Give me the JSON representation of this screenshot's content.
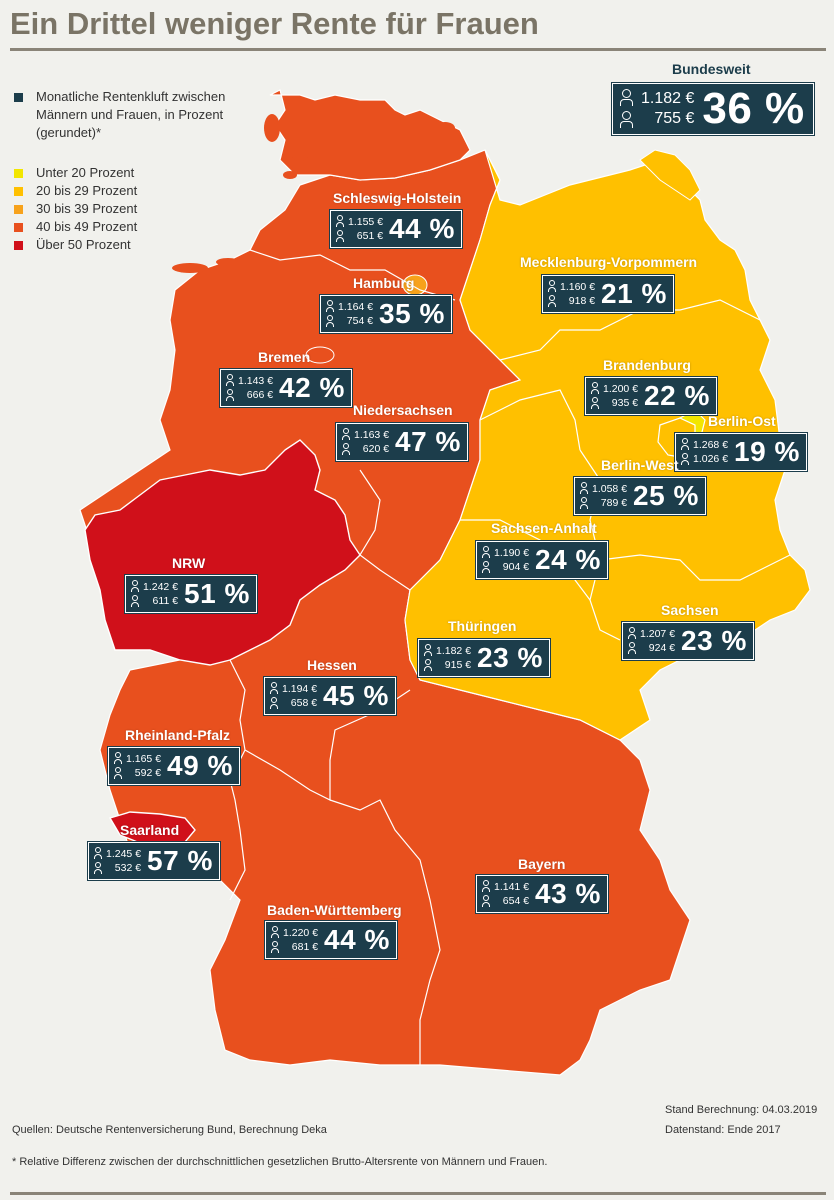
{
  "title": "Ein Drittel weniger Rente für Frauen",
  "legend": {
    "heading": "Monatliche Rentenkluft zwischen Männern und Frauen, in Prozent (gerundet)*",
    "items": [
      {
        "label": "Unter 20 Prozent",
        "color": "#f2e600"
      },
      {
        "label": "20 bis 29 Prozent",
        "color": "#ffc000"
      },
      {
        "label": "30 bis 39 Prozent",
        "color": "#f7a21b"
      },
      {
        "label": "40 bis 49 Prozent",
        "color": "#e8501e"
      },
      {
        "label": "Über 50 Prozent",
        "color": "#d0101a"
      }
    ]
  },
  "federal": {
    "label": "Bundesweit",
    "men": "1.182 €",
    "women": "755 €",
    "gap": "36 %"
  },
  "states": [
    {
      "name": "Schleswig-Holstein",
      "men": "1.155 €",
      "women": "651 €",
      "gap": "44 %",
      "gap_value": 44
    },
    {
      "name": "Hamburg",
      "men": "1.164 €",
      "women": "754 €",
      "gap": "35 %",
      "gap_value": 35
    },
    {
      "name": "Mecklenburg-Vorpommern",
      "men": "1.160 €",
      "women": "918 €",
      "gap": "21 %",
      "gap_value": 21
    },
    {
      "name": "Bremen",
      "men": "1.143 €",
      "women": "666 €",
      "gap": "42 %",
      "gap_value": 42
    },
    {
      "name": "Niedersachsen",
      "men": "1.163 €",
      "women": "620 €",
      "gap": "47 %",
      "gap_value": 47
    },
    {
      "name": "Brandenburg",
      "men": "1.200 €",
      "women": "935 €",
      "gap": "22 %",
      "gap_value": 22
    },
    {
      "name": "Berlin-Ost",
      "men": "1.268 €",
      "women": "1.026 €",
      "gap": "19 %",
      "gap_value": 19
    },
    {
      "name": "Berlin-West",
      "men": "1.058 €",
      "women": "789 €",
      "gap": "25 %",
      "gap_value": 25
    },
    {
      "name": "NRW",
      "men": "1.242 €",
      "women": "611 €",
      "gap": "51 %",
      "gap_value": 51
    },
    {
      "name": "Sachsen-Anhalt",
      "men": "1.190 €",
      "women": "904 €",
      "gap": "24 %",
      "gap_value": 24
    },
    {
      "name": "Thüringen",
      "men": "1.182 €",
      "women": "915 €",
      "gap": "23 %",
      "gap_value": 23
    },
    {
      "name": "Sachsen",
      "men": "1.207 €",
      "women": "924 €",
      "gap": "23 %",
      "gap_value": 23
    },
    {
      "name": "Hessen",
      "men": "1.194 €",
      "women": "658 €",
      "gap": "45 %",
      "gap_value": 45
    },
    {
      "name": "Rheinland-Pfalz",
      "men": "1.165 €",
      "women": "592 €",
      "gap": "49 %",
      "gap_value": 49
    },
    {
      "name": "Saarland",
      "men": "1.245 €",
      "women": "532 €",
      "gap": "57 %",
      "gap_value": 57
    },
    {
      "name": "Bayern",
      "men": "1.141 €",
      "women": "654 €",
      "gap": "43 %",
      "gap_value": 43
    },
    {
      "name": "Baden-Württemberg",
      "men": "1.220 €",
      "women": "681 €",
      "gap": "44 %",
      "gap_value": 44
    }
  ],
  "footer": {
    "sources": "Quellen: Deutsche Rentenversicherung Bund, Berechnung Deka",
    "stand": "Stand Berechnung:  04.03.2019",
    "datenstand": "Datenstand: Ende 2017",
    "footnote": "* Relative Differenz zwischen der durchschnittlichen gesetzlichen Brutto-Altersrente von Männern und Frauen."
  }
}
